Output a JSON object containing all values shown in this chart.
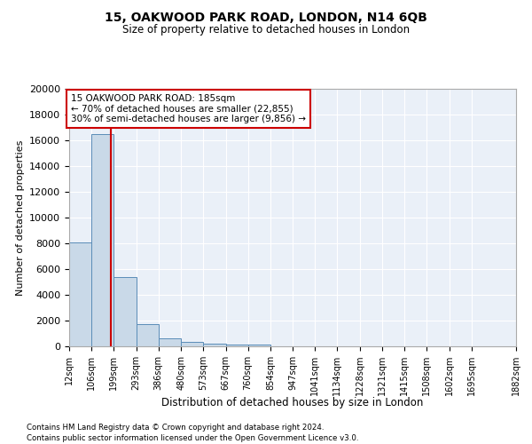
{
  "title1": "15, OAKWOOD PARK ROAD, LONDON, N14 6QB",
  "title2": "Size of property relative to detached houses in London",
  "xlabel": "Distribution of detached houses by size in London",
  "ylabel": "Number of detached properties",
  "bar_values": [
    8100,
    16500,
    5350,
    1750,
    650,
    330,
    185,
    160,
    120,
    0,
    0,
    0,
    0,
    0,
    0,
    0,
    0,
    0,
    0
  ],
  "bar_edges": [
    12,
    106,
    199,
    293,
    386,
    480,
    573,
    667,
    760,
    854,
    947,
    1041,
    1134,
    1228,
    1321,
    1415,
    1508,
    1602,
    1695,
    1882
  ],
  "tick_labels": [
    "12sqm",
    "106sqm",
    "199sqm",
    "293sqm",
    "386sqm",
    "480sqm",
    "573sqm",
    "667sqm",
    "760sqm",
    "854sqm",
    "947sqm",
    "1041sqm",
    "1134sqm",
    "1228sqm",
    "1321sqm",
    "1415sqm",
    "1508sqm",
    "1602sqm",
    "1695sqm",
    "1882sqm"
  ],
  "bar_color": "#c9d9e8",
  "bar_edge_color": "#5b8db8",
  "vline_x": 185,
  "vline_color": "#cc0000",
  "annotation_box_color": "#cc0000",
  "annotation_line1": "15 OAKWOOD PARK ROAD: 185sqm",
  "annotation_line2": "← 70% of detached houses are smaller (22,855)",
  "annotation_line3": "30% of semi-detached houses are larger (9,856) →",
  "ylim": [
    0,
    20000
  ],
  "yticks": [
    0,
    2000,
    4000,
    6000,
    8000,
    10000,
    12000,
    14000,
    16000,
    18000,
    20000
  ],
  "footnote1": "Contains HM Land Registry data © Crown copyright and database right 2024.",
  "footnote2": "Contains public sector information licensed under the Open Government Licence v3.0.",
  "plot_bg_color": "#eaf0f8"
}
